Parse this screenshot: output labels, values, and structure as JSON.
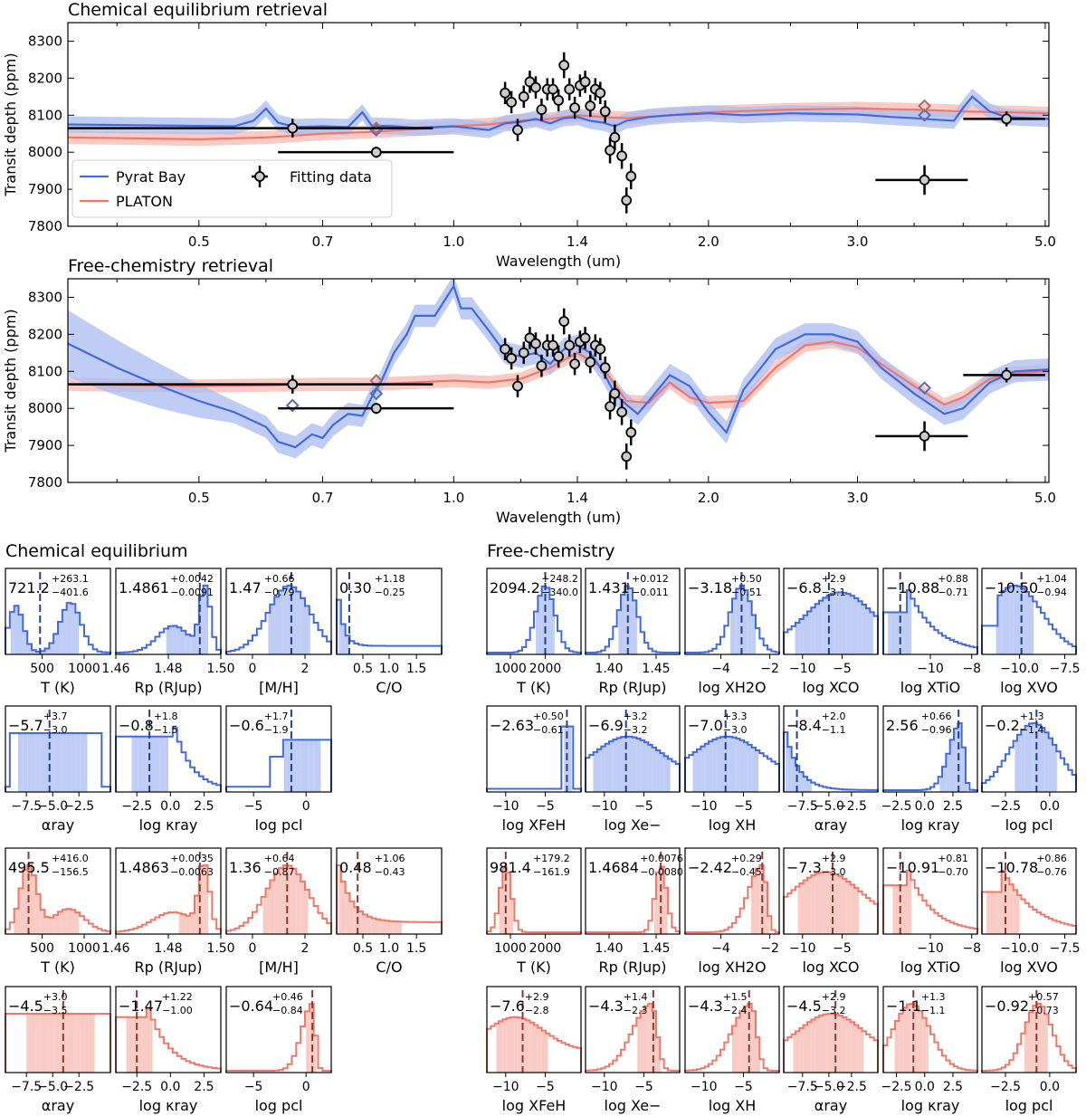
{
  "colors": {
    "pyrat": "#4169e1",
    "platon": "#f07868",
    "pyrat_fill": "#aabcf2",
    "platon_fill": "#f7b9b1",
    "pyrat_marker": "#5b6fb0",
    "platon_marker": "#b56a5c"
  },
  "top": {
    "title": "Chemical equilibrium retrieval",
    "ylabel": "Transit depth (ppm)",
    "xlabel": "Wavelength (um)",
    "legend": {
      "pyrat": "Pyrat Bay",
      "platon": "PLATON",
      "data": "Fitting data"
    }
  },
  "mid": {
    "title": "Free-chemistry retrieval",
    "ylabel": "Transit depth (ppm)",
    "xlabel": "Wavelength (um)"
  },
  "sections": {
    "left": "Chemical equilibrium",
    "right": "Free-chemistry"
  },
  "chart_data": [
    {
      "type": "line",
      "title": "Chemical equilibrium retrieval",
      "xlabel": "Wavelength (um)",
      "ylabel": "Transit depth (ppm)",
      "xscale": "log",
      "xlim": [
        0.35,
        5.05
      ],
      "ylim": [
        7800,
        8350
      ],
      "xticks": [
        "0.5",
        "0.7",
        "1.0",
        "1.4",
        "2.0",
        "3.0",
        "5.0"
      ],
      "yticks": [
        "7800",
        "7900",
        "8000",
        "8100",
        "8200",
        "8300"
      ],
      "legend_position": "lower-left",
      "series": [
        {
          "name": "Pyrat Bay",
          "x": [
            0.35,
            0.55,
            0.58,
            0.6,
            0.62,
            0.65,
            0.7,
            0.75,
            0.78,
            0.8,
            0.85,
            0.9,
            0.95,
            1.0,
            1.05,
            1.1,
            1.15,
            1.2,
            1.25,
            1.3,
            1.35,
            1.4,
            1.45,
            1.5,
            1.55,
            1.6,
            1.7,
            1.8,
            2.0,
            2.2,
            2.5,
            3.0,
            3.3,
            3.5,
            3.7,
            3.9,
            4.0,
            4.1,
            4.3,
            4.5,
            5.05
          ],
          "y": [
            8075,
            8070,
            8085,
            8118,
            8080,
            8068,
            8070,
            8068,
            8108,
            8072,
            8070,
            8066,
            8068,
            8070,
            8065,
            8060,
            8078,
            8082,
            8090,
            8078,
            8092,
            8095,
            8085,
            8080,
            8070,
            8085,
            8095,
            8100,
            8105,
            8100,
            8105,
            8102,
            8095,
            8092,
            8088,
            8085,
            8120,
            8150,
            8110,
            8095,
            8090
          ]
        },
        {
          "name": "PLATON",
          "x": [
            0.35,
            0.5,
            0.6,
            0.65,
            0.7,
            0.8,
            0.9,
            1.0,
            1.1,
            1.2,
            1.3,
            1.4,
            1.5,
            1.6,
            1.8,
            2.0,
            2.5,
            3.0,
            3.5,
            4.0,
            4.5,
            5.05
          ],
          "y": [
            8040,
            8035,
            8040,
            8045,
            8050,
            8055,
            8062,
            8070,
            8075,
            8085,
            8090,
            8100,
            8095,
            8092,
            8100,
            8108,
            8115,
            8118,
            8115,
            8110,
            8108,
            8105
          ]
        },
        {
          "name": "Fitting data",
          "type": "errorbar",
          "points": [
            {
              "x": 0.645,
              "y": 8065,
              "xerr": 0.3,
              "yerr": 25
            },
            {
              "x": 0.81,
              "y": 8000,
              "xerr": 0.19,
              "yerr": 15
            },
            {
              "x": 1.15,
              "y": 8160,
              "yerr": 30
            },
            {
              "x": 1.17,
              "y": 8135,
              "yerr": 30
            },
            {
              "x": 1.19,
              "y": 8060,
              "yerr": 30
            },
            {
              "x": 1.21,
              "y": 8150,
              "yerr": 30
            },
            {
              "x": 1.23,
              "y": 8190,
              "yerr": 30
            },
            {
              "x": 1.25,
              "y": 8175,
              "yerr": 30
            },
            {
              "x": 1.27,
              "y": 8115,
              "yerr": 30
            },
            {
              "x": 1.29,
              "y": 8170,
              "yerr": 30
            },
            {
              "x": 1.31,
              "y": 8170,
              "yerr": 30
            },
            {
              "x": 1.33,
              "y": 8140,
              "yerr": 30
            },
            {
              "x": 1.35,
              "y": 8235,
              "yerr": 35
            },
            {
              "x": 1.37,
              "y": 8170,
              "yerr": 30
            },
            {
              "x": 1.39,
              "y": 8120,
              "yerr": 30
            },
            {
              "x": 1.41,
              "y": 8180,
              "yerr": 30
            },
            {
              "x": 1.43,
              "y": 8190,
              "yerr": 30
            },
            {
              "x": 1.45,
              "y": 8125,
              "yerr": 30
            },
            {
              "x": 1.47,
              "y": 8170,
              "yerr": 30
            },
            {
              "x": 1.49,
              "y": 8160,
              "yerr": 30
            },
            {
              "x": 1.51,
              "y": 8110,
              "yerr": 30
            },
            {
              "x": 1.53,
              "y": 8005,
              "yerr": 35
            },
            {
              "x": 1.55,
              "y": 8040,
              "yerr": 35
            },
            {
              "x": 1.58,
              "y": 7990,
              "yerr": 35
            },
            {
              "x": 1.6,
              "y": 7870,
              "yerr": 35
            },
            {
              "x": 1.62,
              "y": 7935,
              "yerr": 35
            },
            {
              "x": 3.6,
              "y": 7925,
              "xerr": 0.45,
              "yerr": 40
            },
            {
              "x": 4.5,
              "y": 8090,
              "xerr": 0.5,
              "yerr": 20
            }
          ]
        }
      ]
    },
    {
      "type": "line",
      "title": "Free-chemistry retrieval",
      "xlabel": "Wavelength (um)",
      "ylabel": "Transit depth (ppm)",
      "xscale": "log",
      "xlim": [
        0.35,
        5.05
      ],
      "ylim": [
        7800,
        8350
      ],
      "xticks": [
        "0.5",
        "0.7",
        "1.0",
        "1.4",
        "2.0",
        "3.0",
        "5.0"
      ],
      "yticks": [
        "7800",
        "7900",
        "8000",
        "8100",
        "8200",
        "8300"
      ],
      "series": [
        {
          "name": "Pyrat Bay",
          "x": [
            0.35,
            0.4,
            0.45,
            0.5,
            0.55,
            0.6,
            0.62,
            0.65,
            0.68,
            0.7,
            0.72,
            0.75,
            0.78,
            0.8,
            0.82,
            0.85,
            0.88,
            0.9,
            0.95,
            1.0,
            1.02,
            1.05,
            1.1,
            1.15,
            1.2,
            1.25,
            1.3,
            1.35,
            1.4,
            1.45,
            1.5,
            1.55,
            1.6,
            1.65,
            1.7,
            1.8,
            1.9,
            2.0,
            2.1,
            2.2,
            2.4,
            2.6,
            2.8,
            3.0,
            3.2,
            3.5,
            3.8,
            4.0,
            4.3,
            4.6,
            5.05
          ],
          "y": [
            8175,
            8110,
            8060,
            8020,
            7990,
            7950,
            7910,
            7895,
            7930,
            7920,
            7955,
            7985,
            7980,
            8030,
            8070,
            8150,
            8200,
            8250,
            8250,
            8330,
            8270,
            8270,
            8210,
            8150,
            8140,
            8150,
            8120,
            8160,
            8170,
            8150,
            8100,
            8040,
            8010,
            7985,
            8020,
            8090,
            8060,
            7990,
            7935,
            8050,
            8160,
            8200,
            8200,
            8180,
            8110,
            8040,
            7985,
            8000,
            8070,
            8100,
            8105
          ]
        },
        {
          "name": "PLATON",
          "x": [
            0.35,
            0.5,
            0.7,
            0.8,
            0.9,
            1.0,
            1.1,
            1.2,
            1.3,
            1.4,
            1.5,
            1.6,
            1.7,
            1.8,
            1.9,
            2.0,
            2.2,
            2.4,
            2.6,
            2.8,
            3.0,
            3.2,
            3.5,
            3.8,
            4.0,
            4.3,
            4.6,
            5.05
          ],
          "y": [
            8065,
            8060,
            8065,
            8065,
            8070,
            8075,
            8070,
            8080,
            8110,
            8150,
            8110,
            8020,
            8015,
            8070,
            8030,
            8015,
            8020,
            8110,
            8170,
            8180,
            8165,
            8120,
            8060,
            8010,
            8030,
            8080,
            8095,
            8100
          ]
        },
        {
          "name": "Fitting data",
          "type": "errorbar",
          "same_as_panel": 1
        }
      ]
    },
    {
      "type": "histogram-grid",
      "title": "Chemical equilibrium",
      "panels": [
        {
          "label": "T (K)",
          "value": "721.2",
          "plus": "+263.1",
          "minus": "−401.6",
          "ticks": [
            "500",
            "1000"
          ]
        },
        {
          "label": "Rp (RJup)",
          "value": "1.4861",
          "plus": "+0.0042",
          "minus": "−0.0091",
          "ticks": [
            "1.46",
            "1.48",
            "1.50"
          ]
        },
        {
          "label": "[M/H]",
          "value": "1.47",
          "plus": "+0.66",
          "minus": "−0.79",
          "ticks": [
            "0",
            "2"
          ]
        },
        {
          "label": "C/O",
          "value": "0.30",
          "plus": "+1.18",
          "minus": "−0.25",
          "ticks": [
            "0.5",
            "1.0",
            "1.5"
          ]
        },
        {
          "label": "αray",
          "value": "−5.7",
          "plus": "+3.7",
          "minus": "−3.0",
          "ticks": [
            "−7.5",
            "−5.0",
            "−2.5"
          ]
        },
        {
          "label": "log κray",
          "value": "−0.8",
          "plus": "+1.8",
          "minus": "−1.5",
          "ticks": [
            "−2.5",
            "0.0",
            "2.5"
          ]
        },
        {
          "label": "log pcl",
          "value": "−0.6",
          "plus": "+1.7",
          "minus": "−1.9",
          "ticks": [
            "−5",
            "0"
          ]
        },
        {
          "label": "T (K)",
          "value": "495.5",
          "plus": "+416.0",
          "minus": "−156.5",
          "ticks": [
            "500",
            "1000"
          ]
        },
        {
          "label": "Rp (RJup)",
          "value": "1.4863",
          "plus": "+0.0035",
          "minus": "−0.0063",
          "ticks": [
            "1.46",
            "1.48",
            "1.50"
          ]
        },
        {
          "label": "[M/H]",
          "value": "1.36",
          "plus": "+0.64",
          "minus": "−0.87",
          "ticks": [
            "0",
            "2"
          ]
        },
        {
          "label": "C/O",
          "value": "0.48",
          "plus": "+1.06",
          "minus": "−0.43",
          "ticks": [
            "0.5",
            "1.0",
            "1.5"
          ]
        },
        {
          "label": "αray",
          "value": "−4.5",
          "plus": "+3.0",
          "minus": "−3.5",
          "ticks": [
            "−7.5",
            "−5.0",
            "−2.5"
          ]
        },
        {
          "label": "log κray",
          "value": "−1.47",
          "plus": "+1.22",
          "minus": "−1.00",
          "ticks": [
            "−2.5",
            "0.0",
            "2.5"
          ]
        },
        {
          "label": "log pcl",
          "value": "−0.64",
          "plus": "+0.46",
          "minus": "−0.84",
          "ticks": [
            "−5",
            "0"
          ]
        }
      ]
    },
    {
      "type": "histogram-grid",
      "title": "Free-chemistry",
      "panels": [
        {
          "label": "T (K)",
          "value": "2094.2",
          "plus": "+248.2",
          "minus": "−340.0",
          "ticks": [
            "1000",
            "2000"
          ]
        },
        {
          "label": "Rp (RJup)",
          "value": "1.431",
          "plus": "+0.012",
          "minus": "−0.011",
          "ticks": [
            "1.40",
            "1.45"
          ]
        },
        {
          "label": "log XH2O",
          "value": "−3.18",
          "plus": "+0.50",
          "minus": "−0.51",
          "ticks": [
            "−4",
            "−2"
          ]
        },
        {
          "label": "log XCO",
          "value": "−6.8",
          "plus": "+2.9",
          "minus": "−3.1",
          "ticks": [
            "−10",
            "−5"
          ]
        },
        {
          "label": "log XTiO",
          "value": "−10.88",
          "plus": "+0.88",
          "minus": "−0.71",
          "ticks": [
            "−10",
            "−8"
          ]
        },
        {
          "label": "log XVO",
          "value": "−10.50",
          "plus": "+1.04",
          "minus": "−0.94",
          "ticks": [
            "−10.0",
            "−7.5"
          ]
        },
        {
          "label": "log XFeH",
          "value": "−2.63",
          "plus": "+0.50",
          "minus": "−0.61",
          "ticks": [
            "−10",
            "−5"
          ]
        },
        {
          "label": "log Xe−",
          "value": "−6.9",
          "plus": "+3.2",
          "minus": "−3.2",
          "ticks": [
            "−10",
            "−5"
          ]
        },
        {
          "label": "log XH",
          "value": "−7.0",
          "plus": "+3.3",
          "minus": "−3.0",
          "ticks": [
            "−10",
            "−5"
          ]
        },
        {
          "label": "αray",
          "value": "−8.4",
          "plus": "+2.0",
          "minus": "−1.1",
          "ticks": [
            "−7.5",
            "−5.0",
            "−2.5"
          ]
        },
        {
          "label": "log κray",
          "value": "2.56",
          "plus": "+0.66",
          "minus": "−0.96",
          "ticks": [
            "−2.5",
            "0.0",
            "2.5"
          ]
        },
        {
          "label": "log pcl",
          "value": "−0.2",
          "plus": "+1.3",
          "minus": "−1.4",
          "ticks": [
            "−2.5",
            "0.0"
          ]
        },
        {
          "label": "T (K)",
          "value": "981.4",
          "plus": "+179.2",
          "minus": "−161.9",
          "ticks": [
            "1000",
            "2000"
          ]
        },
        {
          "label": "Rp (RJup)",
          "value": "1.4684",
          "plus": "+0.0076",
          "minus": "−0.0080",
          "ticks": [
            "1.40",
            "1.45"
          ]
        },
        {
          "label": "log XH2O",
          "value": "−2.42",
          "plus": "+0.29",
          "minus": "−0.45",
          "ticks": [
            "−4",
            "−2"
          ]
        },
        {
          "label": "log XCO",
          "value": "−7.3",
          "plus": "+2.9",
          "minus": "−3.0",
          "ticks": [
            "−10",
            "−5"
          ]
        },
        {
          "label": "log XTiO",
          "value": "−10.91",
          "plus": "+0.81",
          "minus": "−0.70",
          "ticks": [
            "−10",
            "−8"
          ]
        },
        {
          "label": "log XVO",
          "value": "−10.78",
          "plus": "+0.86",
          "minus": "−0.76",
          "ticks": [
            "−10.0",
            "−7.5"
          ]
        },
        {
          "label": "log XFeH",
          "value": "−7.6",
          "plus": "+2.9",
          "minus": "−2.8",
          "ticks": [
            "−10",
            "−5"
          ]
        },
        {
          "label": "log Xe−",
          "value": "−4.3",
          "plus": "+1.4",
          "minus": "−2.3",
          "ticks": [
            "−10",
            "−5"
          ]
        },
        {
          "label": "log XH",
          "value": "−4.3",
          "plus": "+1.5",
          "minus": "−2.4",
          "ticks": [
            "−10",
            "−5"
          ]
        },
        {
          "label": "αray",
          "value": "−4.5",
          "plus": "+2.9",
          "minus": "−3.2",
          "ticks": [
            "−7.5",
            "−5.0",
            "−2.5"
          ]
        },
        {
          "label": "log κray",
          "value": "−1.1",
          "plus": "+1.3",
          "minus": "−1.1",
          "ticks": [
            "−2.5",
            "0.0",
            "2.5"
          ]
        },
        {
          "label": "log pcl",
          "value": "−0.92",
          "plus": "+0.57",
          "minus": "−0.73",
          "ticks": [
            "−2.5",
            "0.0"
          ]
        }
      ]
    }
  ]
}
